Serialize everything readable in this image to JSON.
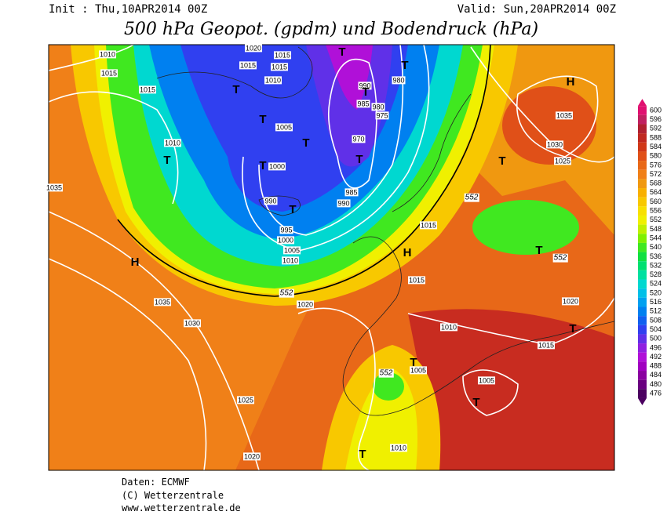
{
  "header": {
    "init": "Init : Thu,10APR2014 00Z",
    "valid": "Valid: Sun,20APR2014 00Z",
    "title": "500 hPa Geopot. (gpdm) und Bodendruck (hPa)"
  },
  "map": {
    "isobar_labels": [
      1010,
      1015,
      1015,
      1010,
      1020,
      1015,
      1015,
      1015,
      1010,
      1005,
      1000,
      990,
      995,
      1000,
      1005,
      1010,
      990,
      985,
      980,
      975,
      970,
      985,
      990,
      980,
      1015,
      1035,
      1035,
      1030,
      1025,
      1020,
      1020,
      1015,
      1010,
      1005,
      1005,
      1010,
      1015,
      1020,
      1035,
      1030,
      1025
    ],
    "height_labels": [
      552,
      552,
      552,
      552
    ],
    "pressure_centers": [
      "H",
      "H",
      "H",
      "T",
      "T",
      "T",
      "T",
      "T",
      "T",
      "T",
      "T",
      "T",
      "T",
      "T",
      "T",
      "T",
      "T",
      "T",
      "T"
    ]
  },
  "legend": {
    "levels": [
      600,
      596,
      592,
      588,
      584,
      580,
      576,
      572,
      568,
      564,
      560,
      556,
      552,
      548,
      544,
      540,
      536,
      532,
      528,
      524,
      520,
      516,
      512,
      508,
      504,
      500,
      496,
      492,
      488,
      484,
      480,
      476
    ],
    "colors": [
      "#e01070",
      "#c02060",
      "#b02030",
      "#c02820",
      "#d03818",
      "#e05018",
      "#e86818",
      "#f08018",
      "#f09810",
      "#f8b000",
      "#f8c800",
      "#f8e000",
      "#f0f000",
      "#c0f000",
      "#80f000",
      "#40e820",
      "#10e040",
      "#00e070",
      "#00e0a0",
      "#00d8d0",
      "#00c0e8",
      "#00a0f0",
      "#0080f0",
      "#1060f0",
      "#3040f0",
      "#6030e8",
      "#9020e0",
      "#b010d8",
      "#a000c0",
      "#8a00a0",
      "#6a0080",
      "#4b0060"
    ]
  },
  "footer": {
    "source": "Daten: ECMWF",
    "copyright": "(C) Wetterzentrale",
    "url": "www.wetterzentrale.de"
  }
}
